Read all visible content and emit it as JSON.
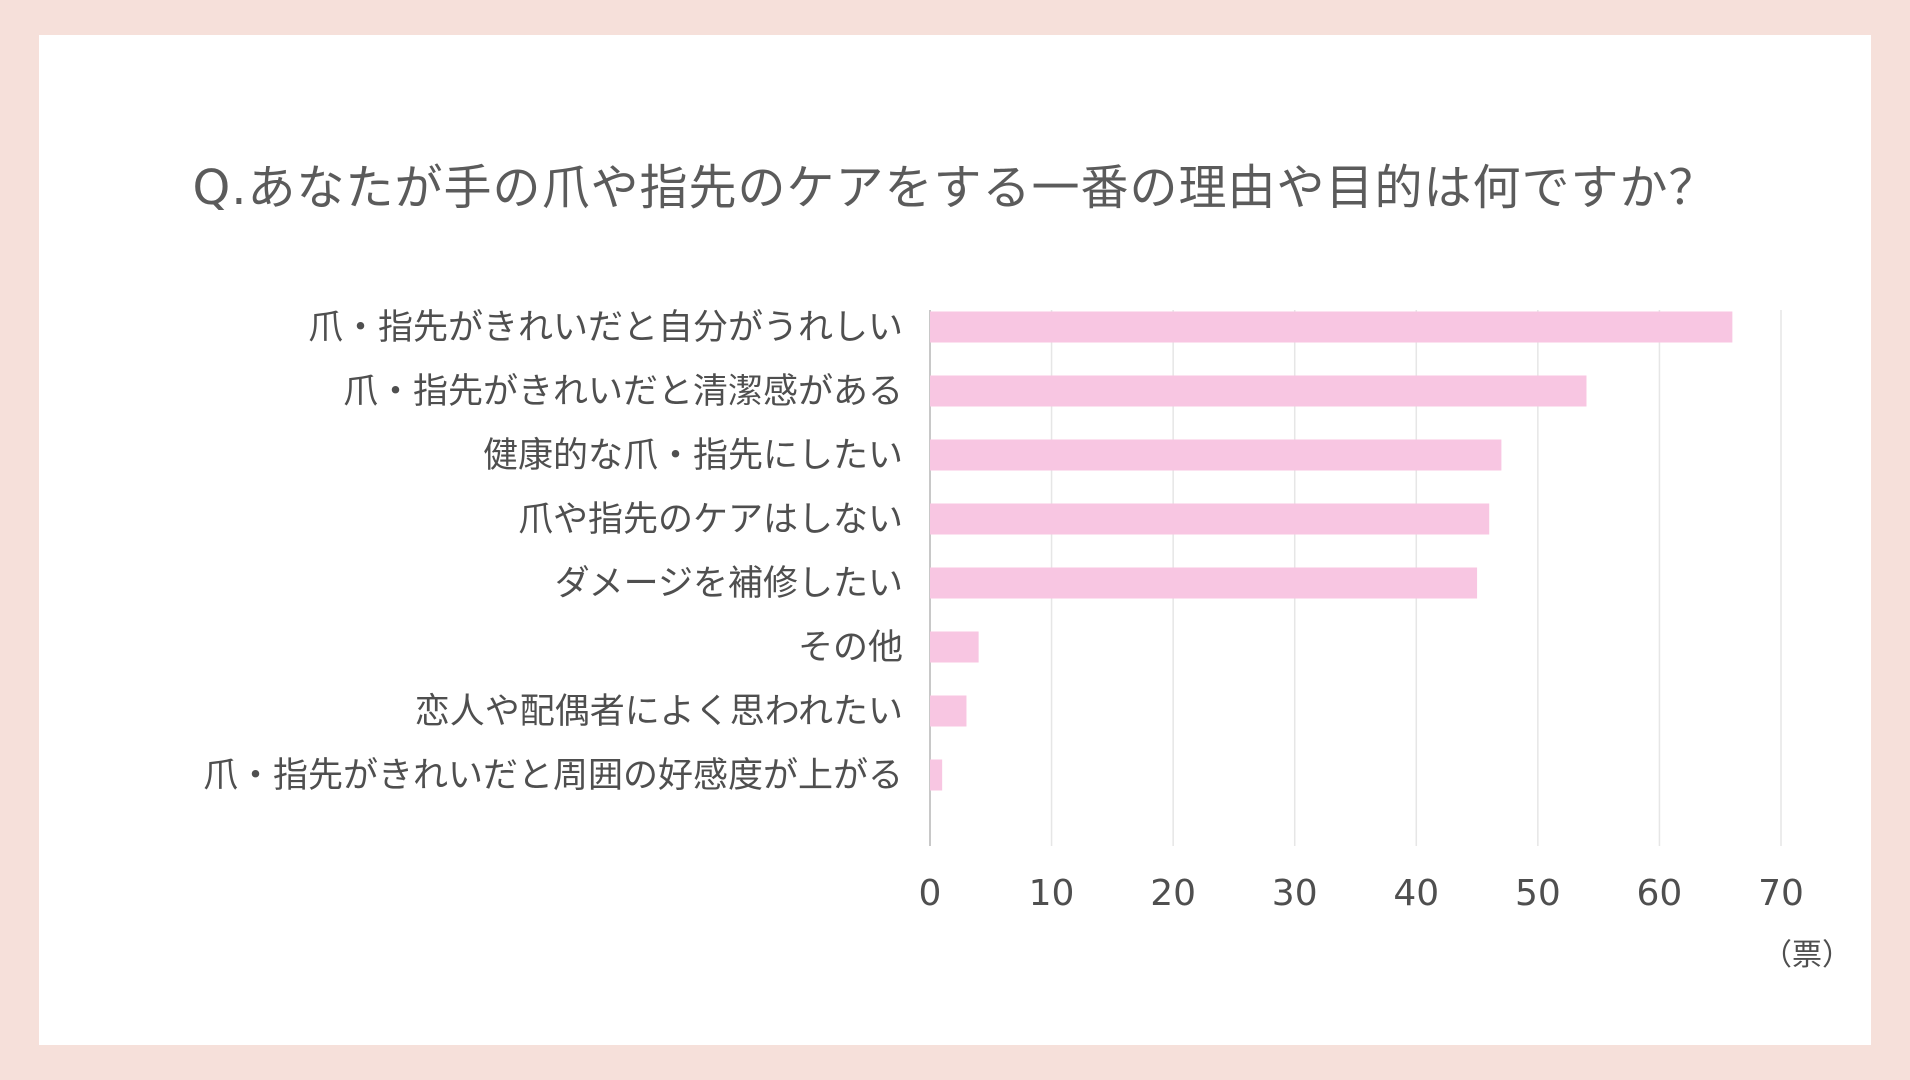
{
  "colors": {
    "background": "#f6e0da",
    "card": "#ffffff",
    "bar": "#f8c6e2",
    "text": "#4f4f4f",
    "grid": "#e6e6e6"
  },
  "chart_data": {
    "type": "bar",
    "orientation": "horizontal",
    "title": "Q.あなたが手の爪や指先のケアをする一番の理由や目的は何ですか？",
    "categories": [
      "爪・指先がきれいだと自分がうれしい",
      "爪・指先がきれいだと清潔感がある",
      "健康的な爪・指先にしたい",
      "爪や指先のケアはしない",
      "ダメージを補修したい",
      "その他",
      "恋人や配偶者によく思われたい",
      "爪・指先がきれいだと周囲の好感度が上がる"
    ],
    "values": [
      66,
      54,
      47,
      46,
      45,
      4,
      3,
      1
    ],
    "xlim": [
      0,
      70
    ],
    "xticks": [
      "0",
      "10",
      "20",
      "30",
      "40",
      "50",
      "60",
      "70"
    ],
    "xlabel": "（票）",
    "grid": true
  }
}
